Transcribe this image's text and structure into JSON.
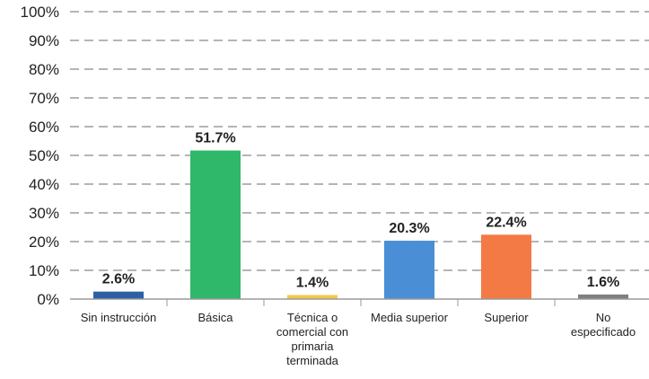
{
  "chart_data": {
    "type": "bar",
    "title": "",
    "xlabel": "",
    "ylabel": "",
    "ylim": [
      0,
      100
    ],
    "yticks": [
      "0%",
      "10%",
      "20%",
      "30%",
      "40%",
      "50%",
      "60%",
      "70%",
      "80%",
      "90%",
      "100%"
    ],
    "grid": true,
    "categories": [
      "Sin instrucción",
      "Básica",
      "Técnica o comercial con primaria terminada",
      "Media superior",
      "Superior",
      "No especificado"
    ],
    "category_lines": [
      [
        "Sin instrucción"
      ],
      [
        "Básica"
      ],
      [
        "Técnica o",
        "comercial con",
        "primaria",
        "terminada"
      ],
      [
        "Media superior"
      ],
      [
        "Superior"
      ],
      [
        "No",
        "especificado"
      ]
    ],
    "values": [
      2.6,
      51.7,
      1.4,
      20.3,
      22.4,
      1.6
    ],
    "value_labels": [
      "2.6%",
      "51.7%",
      "1.4%",
      "20.3%",
      "22.4%",
      "1.6%"
    ],
    "colors": [
      "#2e5fa5",
      "#2fb86a",
      "#f2c94c",
      "#4a8fd6",
      "#f47a45",
      "#7f7f7f"
    ]
  }
}
